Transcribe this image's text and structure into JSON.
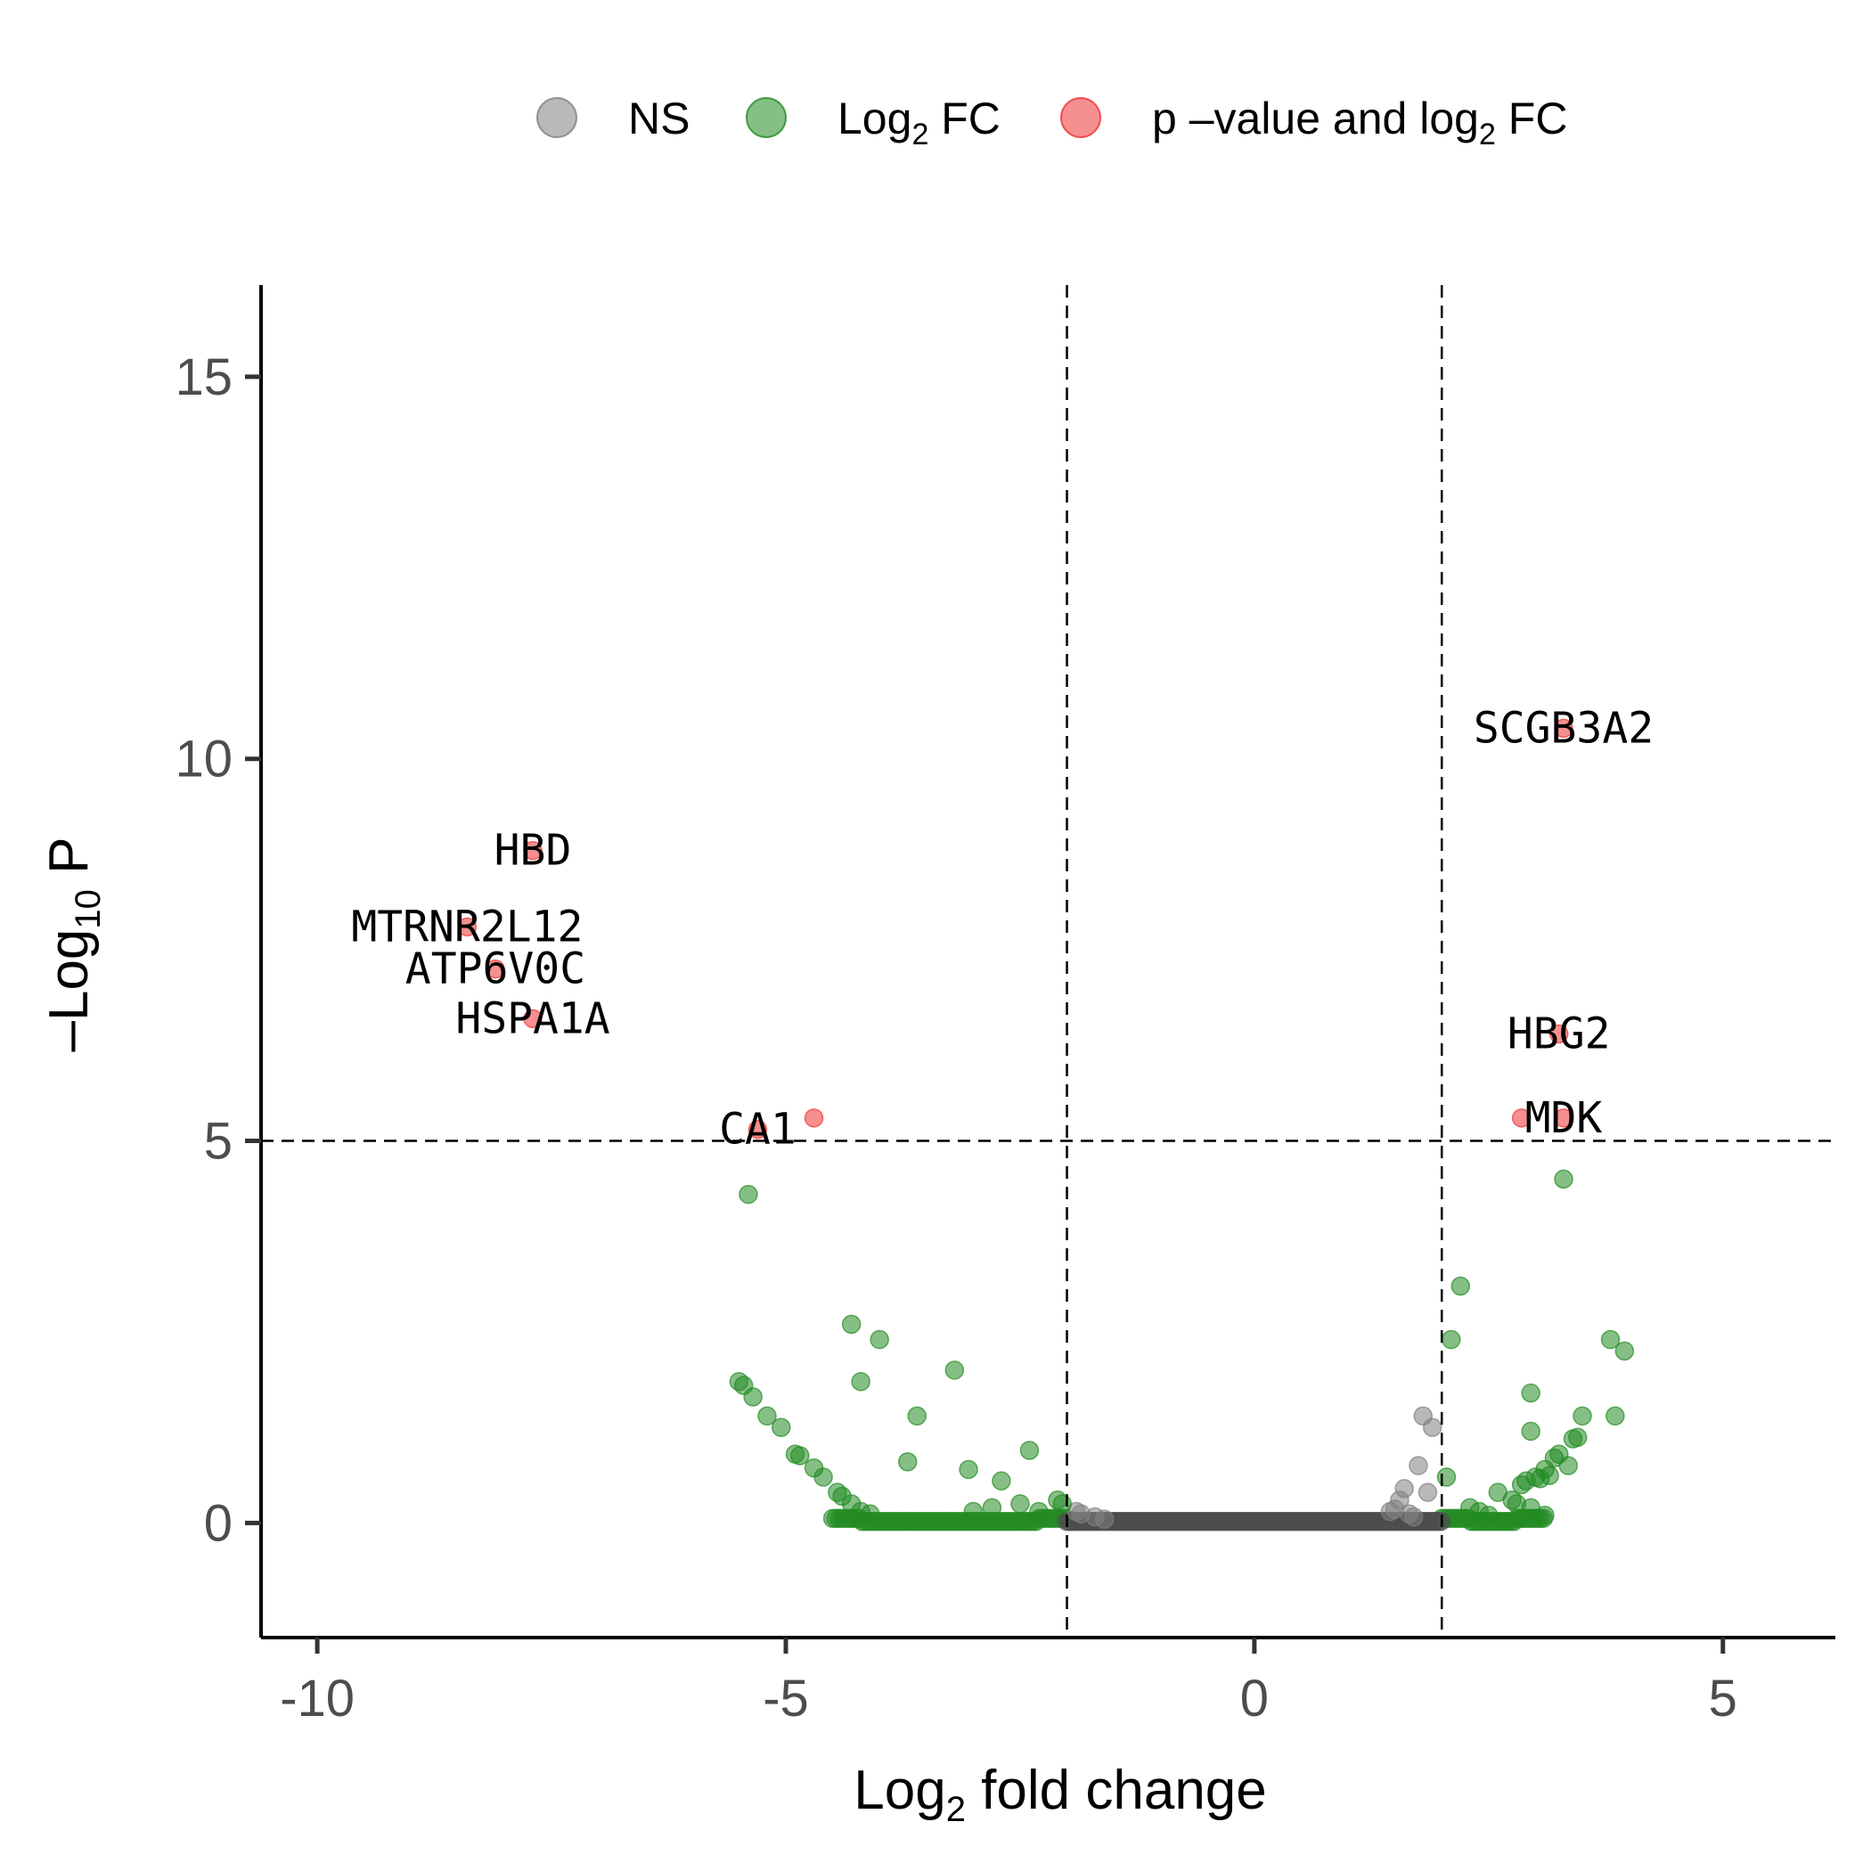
{
  "chart_data": {
    "type": "scatter",
    "title": "",
    "xlabel": {
      "base": "Log",
      "sub": "2",
      "rest": " fold change"
    },
    "ylabel": {
      "base": "–Log",
      "sub": "10",
      "rest": " P"
    },
    "xlim": [
      -10.6,
      6.2
    ],
    "ylim": [
      -1.5,
      16.2
    ],
    "x_ticks": [
      {
        "value": -10,
        "label": "-10"
      },
      {
        "value": -5,
        "label": "-5"
      },
      {
        "value": 0,
        "label": "0"
      },
      {
        "value": 5,
        "label": "5"
      }
    ],
    "y_ticks": [
      {
        "value": 0,
        "label": "0"
      },
      {
        "value": 5,
        "label": "5"
      },
      {
        "value": 10,
        "label": "10"
      },
      {
        "value": 15,
        "label": "15"
      }
    ],
    "thresholds": {
      "fc_cutoff": [
        -2,
        2
      ],
      "p_cutoff": 5
    },
    "grid": false,
    "legend_position": "top",
    "legend": [
      {
        "key": "ns",
        "base": "NS",
        "sub": "",
        "rest": "",
        "color": "#808080"
      },
      {
        "key": "fc",
        "base": "Log",
        "sub": "2",
        "rest": " FC",
        "color": "#228B22"
      },
      {
        "key": "pfc",
        "base": "p –value and log",
        "sub": "2",
        "rest": " FC",
        "color": "#ee3333"
      }
    ],
    "series": [
      {
        "key": "ns",
        "color": "#808080",
        "points": [
          [
            1.8,
            1.4
          ],
          [
            1.9,
            1.25
          ],
          [
            1.75,
            0.75
          ],
          [
            1.6,
            0.45
          ],
          [
            1.55,
            0.3
          ],
          [
            1.85,
            0.4
          ],
          [
            1.45,
            0.15
          ],
          [
            1.5,
            0.18
          ],
          [
            1.65,
            0.12
          ],
          [
            1.7,
            0.08
          ],
          [
            -1.85,
            0.12
          ],
          [
            -1.7,
            0.08
          ],
          [
            -1.6,
            0.05
          ],
          [
            -1.9,
            0.15
          ]
        ]
      },
      {
        "key": "fc",
        "color": "#228B22",
        "points": [
          [
            -5.4,
            4.3
          ],
          [
            -4.3,
            2.6
          ],
          [
            -4.0,
            2.4
          ],
          [
            -3.2,
            2.0
          ],
          [
            -4.2,
            1.85
          ],
          [
            -5.5,
            1.85
          ],
          [
            -5.45,
            1.8
          ],
          [
            -5.35,
            1.65
          ],
          [
            -5.2,
            1.4
          ],
          [
            -5.05,
            1.25
          ],
          [
            -3.6,
            1.4
          ],
          [
            -2.4,
            0.95
          ],
          [
            -4.9,
            0.9
          ],
          [
            -4.85,
            0.88
          ],
          [
            -4.7,
            0.72
          ],
          [
            -4.6,
            0.6
          ],
          [
            -3.7,
            0.8
          ],
          [
            -3.05,
            0.7
          ],
          [
            -2.7,
            0.55
          ],
          [
            -4.45,
            0.4
          ],
          [
            -4.4,
            0.35
          ],
          [
            -4.3,
            0.25
          ],
          [
            -4.2,
            0.15
          ],
          [
            -4.1,
            0.12
          ],
          [
            -3.0,
            0.15
          ],
          [
            -2.8,
            0.2
          ],
          [
            -2.5,
            0.25
          ],
          [
            -2.3,
            0.15
          ],
          [
            -2.1,
            0.3
          ],
          [
            -2.05,
            0.25
          ],
          [
            2.2,
            3.1
          ],
          [
            2.1,
            2.4
          ],
          [
            3.8,
            2.4
          ],
          [
            3.95,
            2.25
          ],
          [
            2.95,
            1.7
          ],
          [
            3.5,
            1.4
          ],
          [
            3.85,
            1.4
          ],
          [
            2.95,
            1.2
          ],
          [
            3.4,
            1.1
          ],
          [
            3.45,
            1.12
          ],
          [
            3.25,
            0.9
          ],
          [
            3.2,
            0.85
          ],
          [
            3.1,
            0.7
          ],
          [
            3.35,
            0.75
          ],
          [
            3.0,
            0.6
          ],
          [
            3.05,
            0.58
          ],
          [
            3.15,
            0.62
          ],
          [
            2.9,
            0.55
          ],
          [
            2.85,
            0.5
          ],
          [
            2.6,
            0.4
          ],
          [
            2.75,
            0.3
          ],
          [
            2.8,
            0.25
          ],
          [
            2.95,
            0.2
          ],
          [
            3.1,
            0.1
          ],
          [
            2.05,
            0.6
          ],
          [
            2.3,
            0.2
          ],
          [
            2.4,
            0.15
          ],
          [
            2.5,
            0.1
          ],
          [
            3.3,
            4.5
          ]
        ]
      },
      {
        "key": "pfc",
        "color": "#ee3333",
        "points": [
          [
            -7.7,
            8.8
          ],
          [
            -8.4,
            7.8
          ],
          [
            -8.1,
            7.25
          ],
          [
            -7.7,
            6.6
          ],
          [
            -4.7,
            5.3
          ],
          [
            -5.3,
            5.15
          ],
          [
            3.3,
            10.4
          ],
          [
            3.25,
            6.4
          ],
          [
            2.85,
            5.3
          ],
          [
            3.3,
            5.3
          ]
        ]
      }
    ],
    "baseline_band": {
      "note": "dense rows of points near y = 0",
      "ns_x_range": [
        -2,
        2
      ],
      "fc_x_ranges": [
        [
          -4.5,
          -2
        ],
        [
          2,
          3.1
        ]
      ]
    },
    "labels": [
      {
        "text": "HBD",
        "x": -7.7,
        "y": 8.8
      },
      {
        "text": "MTRNR2L12",
        "x": -8.4,
        "y": 7.8
      },
      {
        "text": "ATP6V0C",
        "x": -8.1,
        "y": 7.25
      },
      {
        "text": "HSPA1A",
        "x": -7.7,
        "y": 6.6
      },
      {
        "text": "CA1",
        "x": -5.3,
        "y": 5.15
      },
      {
        "text": "SCGB3A2",
        "x": 3.3,
        "y": 10.4
      },
      {
        "text": "HBG2",
        "x": 3.25,
        "y": 6.4
      },
      {
        "text": "MDK",
        "x": 3.3,
        "y": 5.3
      }
    ]
  }
}
